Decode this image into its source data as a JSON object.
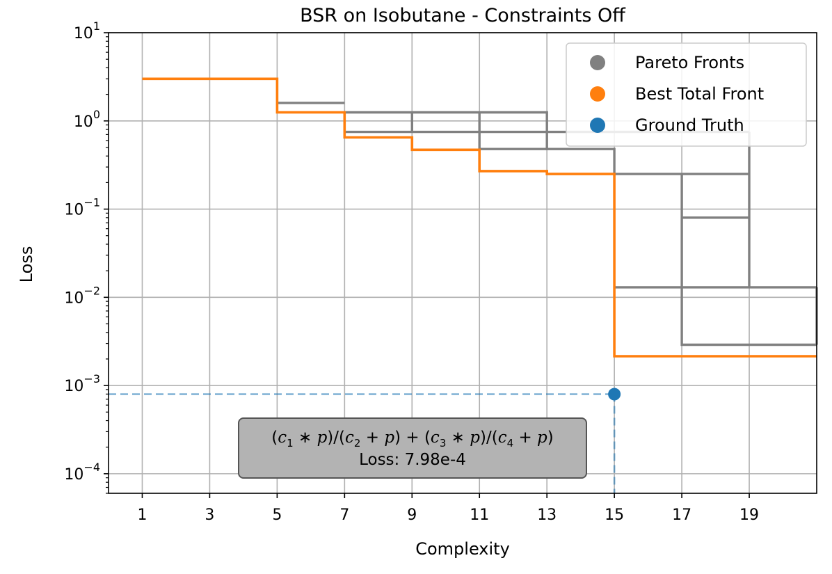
{
  "chart_data": {
    "type": "line",
    "title": "BSR on Isobutane - Constraints Off",
    "xlabel": "Complexity",
    "ylabel": "Loss",
    "xlim": [
      0,
      21
    ],
    "ylim": [
      6e-05,
      10
    ],
    "yscale": "log",
    "grid": true,
    "legend_position": "top-right",
    "x_ticks": [
      1,
      3,
      5,
      7,
      9,
      11,
      13,
      15,
      17,
      19
    ],
    "y_ticks": [
      {
        "value": 10,
        "base": "10",
        "exp": "1"
      },
      {
        "value": 1,
        "base": "10",
        "exp": "0"
      },
      {
        "value": 0.1,
        "base": "10",
        "exp": "−1"
      },
      {
        "value": 0.01,
        "base": "10",
        "exp": "−2"
      },
      {
        "value": 0.001,
        "base": "10",
        "exp": "−3"
      },
      {
        "value": 0.0001,
        "base": "10",
        "exp": "−4"
      }
    ],
    "colors": {
      "pareto": "#808080",
      "best": "#ff7f0e",
      "truth": "#1f77b4",
      "grid": "#b0b0b0",
      "annot_box": "#b3b3b3"
    },
    "series": [
      {
        "name": "Pareto Fronts",
        "kind": "step",
        "points": [
          [
            5,
            1.6
          ],
          [
            7,
            1.6
          ]
        ]
      },
      {
        "name": "",
        "kind": "step",
        "points": [
          [
            7,
            1.25
          ],
          [
            13,
            1.25
          ],
          [
            13,
            0.48
          ],
          [
            15,
            0.48
          ],
          [
            15,
            0.25
          ],
          [
            19,
            0.25
          ]
        ]
      },
      {
        "name": "",
        "kind": "step",
        "points": [
          [
            7,
            0.75
          ],
          [
            19,
            0.75
          ]
        ]
      },
      {
        "name": "",
        "kind": "step",
        "points": [
          [
            17,
            0.08
          ],
          [
            19,
            0.08
          ]
        ]
      },
      {
        "name": "",
        "kind": "step",
        "points": [
          [
            15,
            0.013
          ],
          [
            21,
            0.013
          ]
        ]
      },
      {
        "name": "",
        "kind": "step",
        "points": [
          [
            17,
            0.25
          ],
          [
            17,
            0.0029
          ],
          [
            21,
            0.0029
          ]
        ]
      },
      {
        "name": "",
        "kind": "step",
        "points": [
          [
            19,
            0.75
          ],
          [
            19,
            0.013
          ]
        ]
      },
      {
        "name": "",
        "kind": "step",
        "points": [
          [
            11,
            1.25
          ],
          [
            11,
            0.48
          ],
          [
            13,
            0.48
          ]
        ]
      },
      {
        "name": "",
        "kind": "step",
        "points": [
          [
            9,
            1.25
          ],
          [
            9,
            0.75
          ]
        ]
      },
      {
        "name": "",
        "kind": "step",
        "points": [
          [
            21,
            0.013
          ],
          [
            21,
            0.0029
          ]
        ]
      },
      {
        "name": "Best Total Front",
        "kind": "step",
        "points": [
          [
            1,
            3.0
          ],
          [
            5,
            3.0
          ],
          [
            5,
            1.25
          ],
          [
            7,
            1.25
          ],
          [
            7,
            0.65
          ],
          [
            9,
            0.65
          ],
          [
            9,
            0.47
          ],
          [
            11,
            0.47
          ],
          [
            11,
            0.27
          ],
          [
            13,
            0.27
          ],
          [
            13,
            0.25
          ],
          [
            15,
            0.25
          ],
          [
            15,
            0.00215
          ],
          [
            21,
            0.00215
          ]
        ]
      },
      {
        "name": "Ground Truth",
        "kind": "point",
        "x": 15,
        "y": 0.000798
      }
    ],
    "legend": [
      {
        "label": "Pareto Fronts",
        "color": "#808080"
      },
      {
        "label": "Best Total Front",
        "color": "#ff7f0e"
      },
      {
        "label": "Ground Truth",
        "color": "#1f77b4"
      }
    ],
    "annotation": {
      "loss_text": "Loss: 7.98e-4"
    }
  }
}
